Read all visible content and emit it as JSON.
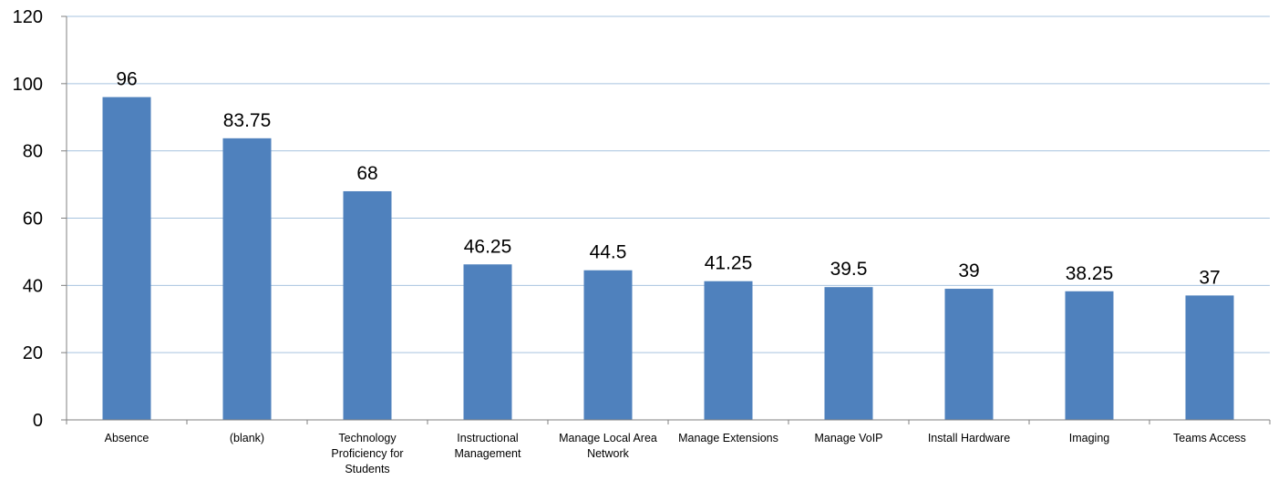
{
  "chart_data": {
    "type": "bar",
    "title": "",
    "xlabel": "",
    "ylabel": "",
    "categories": [
      "Absence",
      "(blank)",
      "Technology Proficiency for Students",
      "Instructional Management",
      "Manage Local Area Network",
      "Manage Extensions",
      "Manage VoIP",
      "Install Hardware",
      "Imaging",
      "Teams Access"
    ],
    "category_label_lines": [
      [
        "Absence"
      ],
      [
        "(blank)"
      ],
      [
        "Technology",
        "Proficiency for",
        "Students"
      ],
      [
        "Instructional",
        "Management"
      ],
      [
        "Manage Local Area",
        "Network"
      ],
      [
        "Manage Extensions"
      ],
      [
        "Manage VoIP"
      ],
      [
        "Install Hardware"
      ],
      [
        "Imaging"
      ],
      [
        "Teams Access"
      ]
    ],
    "values": [
      96,
      83.75,
      68,
      46.25,
      44.5,
      41.25,
      39.5,
      39,
      38.25,
      37
    ],
    "data_labels": [
      "96",
      "83.75",
      "68",
      "46.25",
      "44.5",
      "41.25",
      "39.5",
      "39",
      "38.25",
      "37"
    ],
    "ylim": [
      0,
      120
    ],
    "yticks": [
      0,
      20,
      40,
      60,
      80,
      100,
      120
    ],
    "grid": true,
    "legend": "none",
    "colors": {
      "bar": "#4f81bd",
      "grid": "#a7c3df",
      "axis": "#808080",
      "text": "#000000"
    }
  }
}
